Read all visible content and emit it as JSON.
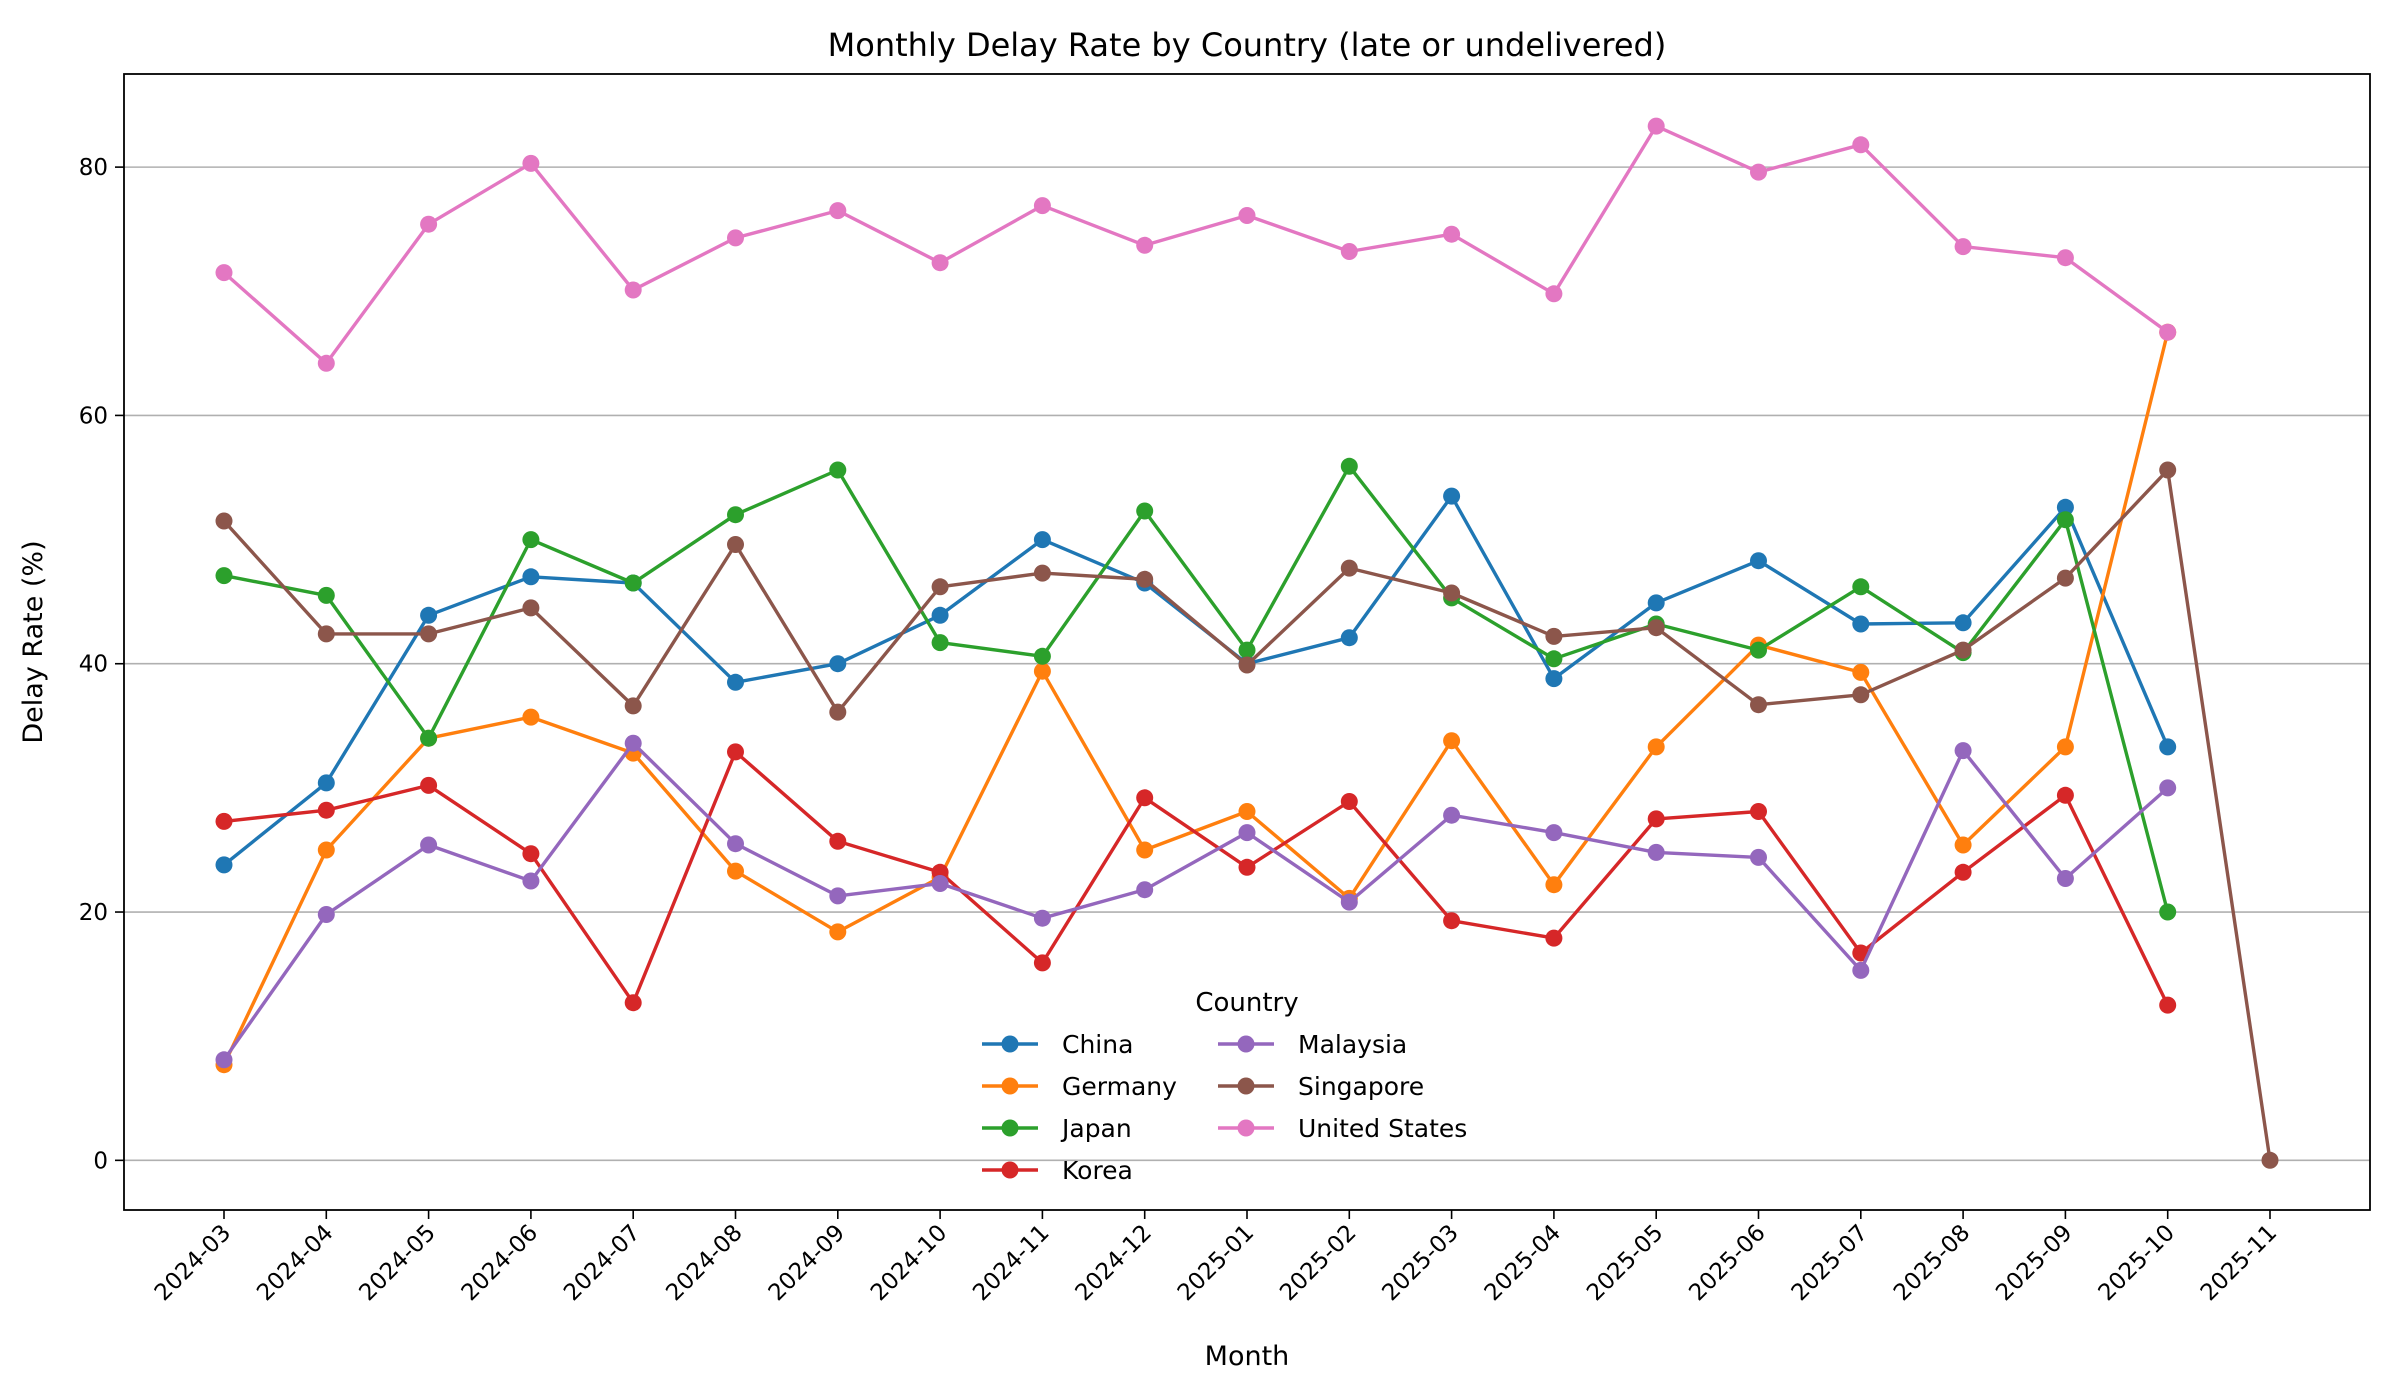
{
  "chart_data": {
    "type": "line",
    "title": "Monthly Delay Rate by Country (late or undelivered)",
    "xlabel": "Month",
    "ylabel": "Delay Rate (%)",
    "ylim": [
      -4,
      87.5
    ],
    "yticks": [
      0,
      20,
      40,
      60,
      80
    ],
    "grid": "horizontal",
    "legend_title": "Country",
    "legend_placement": "bottom-center",
    "categories": [
      "2024-03",
      "2024-04",
      "2024-05",
      "2024-06",
      "2024-07",
      "2024-08",
      "2024-09",
      "2024-10",
      "2024-11",
      "2024-12",
      "2025-01",
      "2025-02",
      "2025-03",
      "2025-04",
      "2025-05",
      "2025-06",
      "2025-07",
      "2025-08",
      "2025-09",
      "2025-10",
      "2025-11"
    ],
    "series": [
      {
        "name": "China",
        "color": "#1f77b4",
        "values": [
          23.8,
          30.4,
          43.9,
          47.0,
          46.5,
          38.5,
          40.0,
          43.9,
          50.0,
          46.5,
          40.0,
          42.1,
          53.5,
          38.8,
          44.9,
          48.3,
          43.2,
          43.3,
          52.6,
          33.3,
          null
        ]
      },
      {
        "name": "Germany",
        "color": "#ff7f0e",
        "values": [
          7.7,
          25.0,
          34.0,
          35.7,
          32.8,
          23.3,
          18.4,
          22.8,
          39.4,
          25.0,
          28.1,
          21.1,
          33.8,
          22.2,
          33.3,
          41.5,
          39.3,
          25.4,
          33.3,
          66.7,
          null
        ]
      },
      {
        "name": "Japan",
        "color": "#2ca02c",
        "values": [
          47.1,
          45.5,
          34.0,
          50.0,
          46.5,
          52.0,
          55.6,
          41.7,
          40.6,
          52.3,
          41.1,
          55.9,
          45.3,
          40.4,
          43.2,
          41.1,
          46.2,
          40.9,
          51.6,
          20.0,
          null
        ]
      },
      {
        "name": "Korea",
        "color": "#d62728",
        "values": [
          27.3,
          28.2,
          30.2,
          24.7,
          12.7,
          32.9,
          25.7,
          23.2,
          15.9,
          29.2,
          23.6,
          28.9,
          19.3,
          17.9,
          27.5,
          28.1,
          16.7,
          23.2,
          29.4,
          12.5,
          null
        ]
      },
      {
        "name": "Malaysia",
        "color": "#9467bd",
        "values": [
          8.1,
          19.8,
          25.4,
          22.5,
          33.6,
          25.5,
          21.3,
          22.3,
          19.5,
          21.8,
          26.4,
          20.8,
          27.8,
          26.4,
          24.8,
          24.4,
          15.3,
          33.0,
          22.7,
          30.0,
          null
        ]
      },
      {
        "name": "Singapore",
        "color": "#8c564b",
        "values": [
          51.5,
          42.4,
          42.4,
          44.5,
          36.6,
          49.6,
          36.1,
          46.2,
          47.3,
          46.8,
          39.9,
          47.7,
          45.7,
          42.2,
          42.9,
          36.7,
          37.5,
          41.1,
          46.9,
          55.6,
          0.0
        ]
      },
      {
        "name": "United States",
        "color": "#e377c2",
        "values": [
          71.5,
          64.2,
          75.4,
          80.3,
          70.1,
          74.3,
          76.5,
          72.3,
          76.9,
          73.7,
          76.1,
          73.2,
          74.6,
          69.8,
          83.3,
          79.6,
          81.8,
          73.6,
          72.7,
          66.7,
          null
        ]
      }
    ]
  }
}
